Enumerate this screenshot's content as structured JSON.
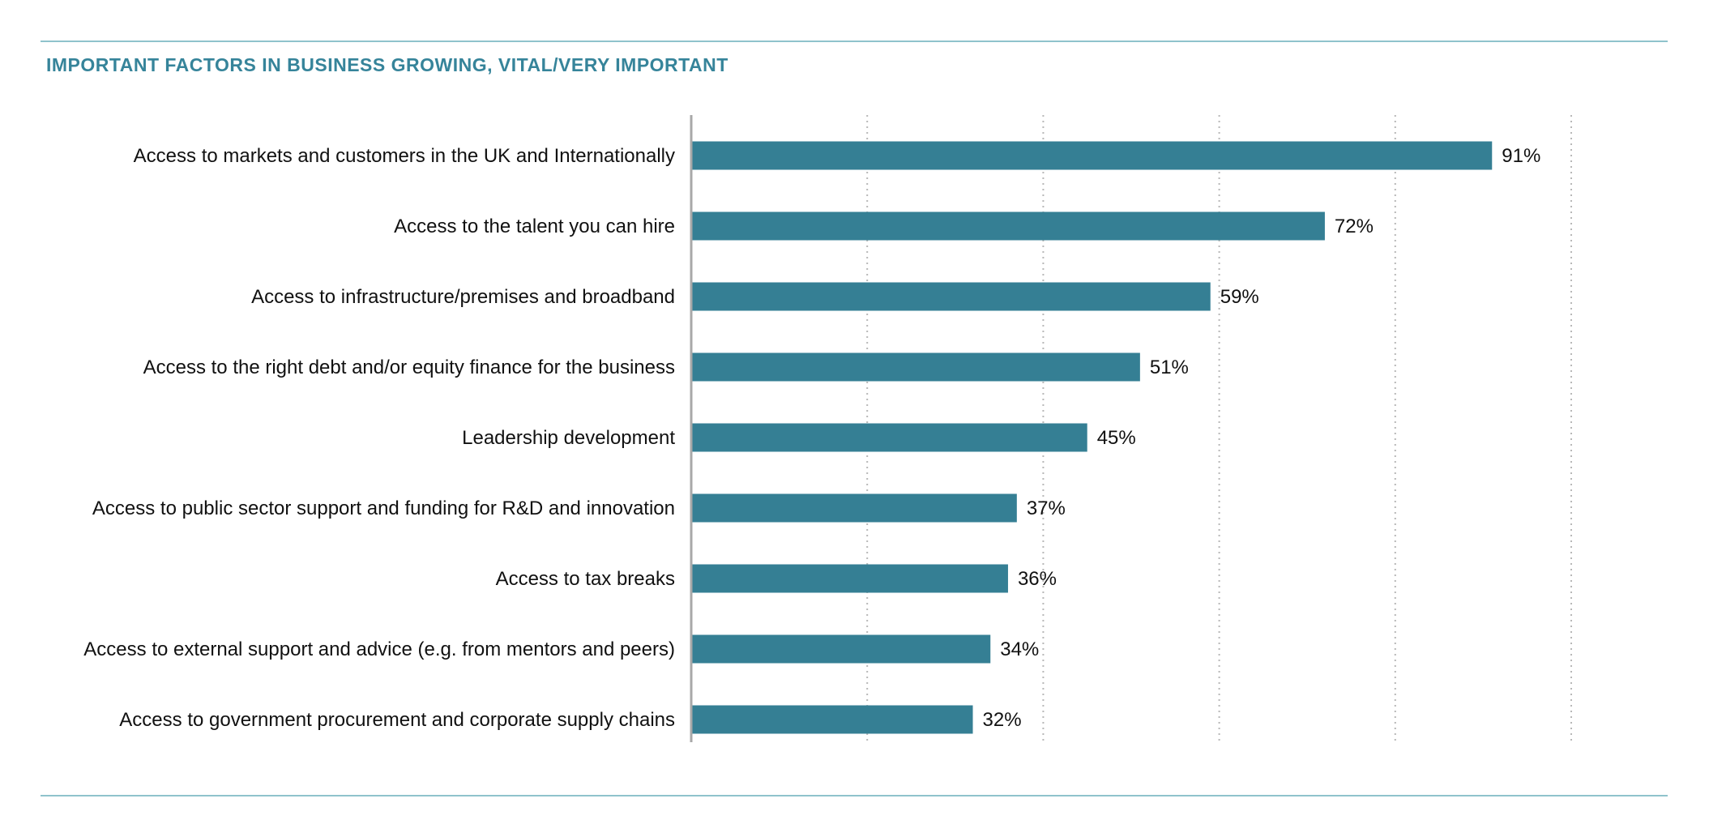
{
  "chart_data": {
    "type": "bar",
    "orientation": "horizontal",
    "title": "IMPORTANT FACTORS IN BUSINESS GROWING, VITAL/VERY IMPORTANT",
    "categories": [
      "Access to markets and customers in the UK and Internationally",
      "Access to the talent you can hire",
      "Access to infrastructure/premises and broadband",
      "Access to the right debt and/or equity finance for the business",
      "Leadership development",
      "Access to public sector support and funding for R&D and innovation",
      "Access to tax breaks",
      "Access to external support and advice (e.g. from mentors and peers)",
      "Access to government procurement and corporate supply chains"
    ],
    "values": [
      91,
      72,
      59,
      51,
      45,
      37,
      36,
      34,
      32
    ],
    "value_labels": [
      "91%",
      "72%",
      "59%",
      "51%",
      "45%",
      "37%",
      "36%",
      "34%",
      "32%"
    ],
    "xlim": [
      0,
      100
    ],
    "grid": true,
    "grid_style": "dotted vertical",
    "bar_color": "#357f94",
    "title_color": "#36849a",
    "rule_color": "#8fc3cc"
  }
}
